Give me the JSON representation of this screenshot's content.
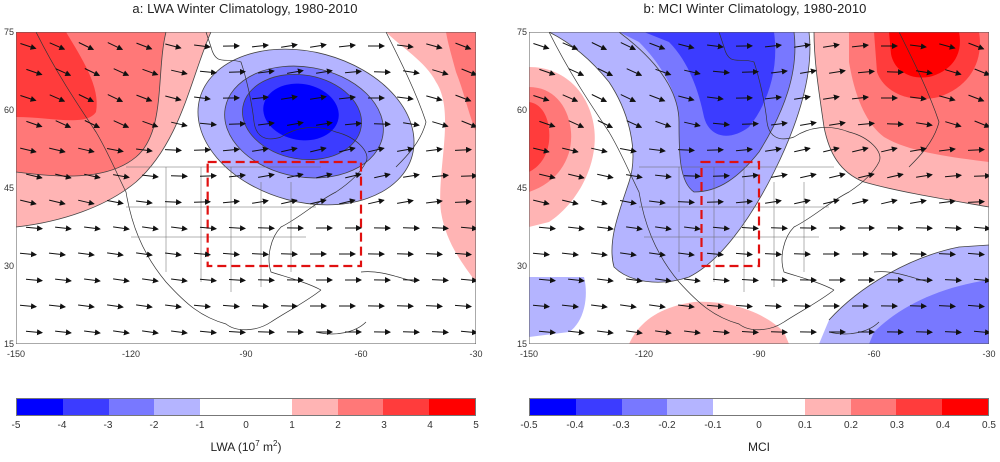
{
  "panels": [
    {
      "id": "a",
      "title": "a: LWA Winter Climatology, 1980-2010",
      "colorbar": {
        "label_main": "LWA (10",
        "label_exp": "7",
        "label_unit": " m",
        "label_unit_exp": "2",
        "label_close": ")",
        "ticks": [
          "-5",
          "-4",
          "-3",
          "-2",
          "-1",
          "0",
          "1",
          "2",
          "3",
          "4",
          "5"
        ]
      },
      "colors": [
        "#0000ff",
        "#3c3cff",
        "#7878ff",
        "#b4b4ff",
        "#ffffff",
        "#ffffff",
        "#ffb4b4",
        "#ff7878",
        "#ff3c3c",
        "#ff0000"
      ],
      "box": {
        "lon": [
          -100,
          -60
        ],
        "lat": [
          30,
          50
        ]
      }
    },
    {
      "id": "b",
      "title": "b: MCI Winter Climatology, 1980-2010",
      "colorbar": {
        "label_main": "MCI",
        "label_exp": "",
        "label_unit": "",
        "label_unit_exp": "",
        "label_close": "",
        "ticks": [
          "-0.5",
          "-0.4",
          "-0.3",
          "-0.2",
          "-0.1",
          "0",
          "0.1",
          "0.2",
          "0.3",
          "0.4",
          "0.5"
        ]
      },
      "colors": [
        "#0000ff",
        "#3c3cff",
        "#7878ff",
        "#b4b4ff",
        "#ffffff",
        "#ffffff",
        "#ffb4b4",
        "#ff7878",
        "#ff3c3c",
        "#ff0000"
      ],
      "box": {
        "lon": [
          -105,
          -90
        ],
        "lat": [
          30,
          50
        ]
      }
    }
  ],
  "axes": {
    "lon_ticks": [
      "-150",
      "-120",
      "-90",
      "-60",
      "-30"
    ],
    "lat_ticks": [
      "75",
      "60",
      "45",
      "30",
      "15"
    ]
  },
  "map_extent": {
    "lon": [
      -150,
      -30
    ],
    "lat": [
      15,
      75
    ]
  },
  "icons": {
    "arrow": "wind-vector-arrow"
  }
}
